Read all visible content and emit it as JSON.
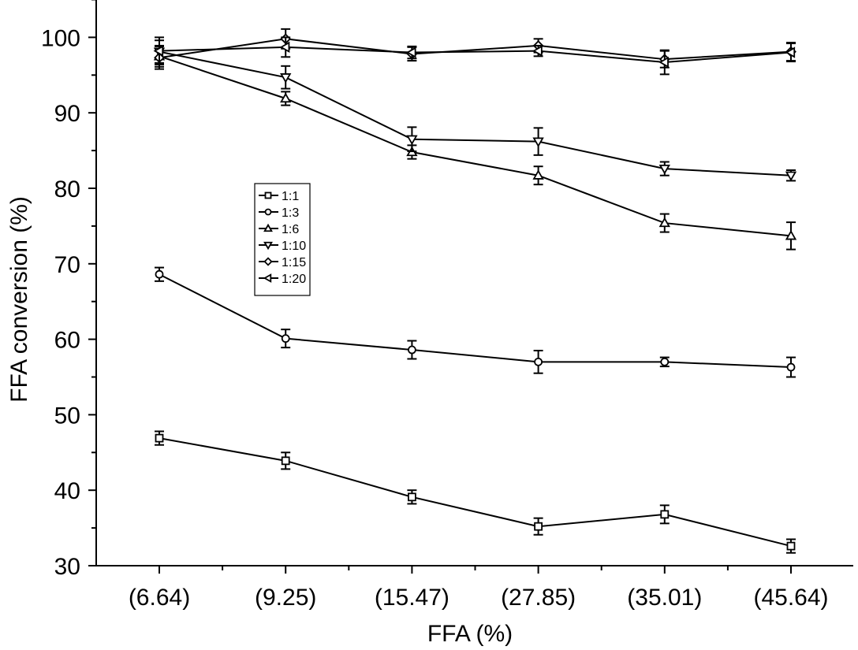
{
  "chart_data": {
    "type": "line",
    "xlabel": "FFA (%)",
    "ylabel": "FFA conversion (%)",
    "categories": [
      "(6.64)",
      "(9.25)",
      "(15.47)",
      "(27.85)",
      "(35.01)",
      "(45.64)"
    ],
    "ylim": [
      30,
      105
    ],
    "yticks": [
      30,
      40,
      50,
      60,
      70,
      80,
      90,
      100
    ],
    "grid": false,
    "legend_position": "center-left",
    "series": [
      {
        "name": "1:1",
        "marker": "square",
        "values": [
          46.9,
          43.9,
          39.1,
          35.2,
          36.8,
          32.6
        ],
        "errors": [
          0.9,
          1.1,
          0.9,
          1.1,
          1.2,
          0.9
        ]
      },
      {
        "name": "1:3",
        "marker": "circle",
        "values": [
          68.6,
          60.1,
          58.6,
          57.0,
          57.0,
          56.3
        ],
        "errors": [
          0.9,
          1.2,
          1.2,
          1.5,
          0.6,
          1.3
        ]
      },
      {
        "name": "1:6",
        "marker": "triangle-up",
        "values": [
          97.5,
          91.9,
          84.8,
          81.7,
          75.4,
          73.7
        ],
        "errors": [
          1.4,
          0.9,
          0.9,
          1.2,
          1.2,
          1.8
        ]
      },
      {
        "name": "1:10",
        "marker": "triangle-down",
        "values": [
          98.1,
          94.7,
          86.5,
          86.2,
          82.6,
          81.7
        ],
        "errors": [
          1.5,
          1.5,
          1.6,
          1.8,
          0.9,
          0.7
        ]
      },
      {
        "name": "1:15",
        "marker": "diamond",
        "values": [
          97.3,
          99.8,
          97.8,
          98.9,
          97.1,
          98.1
        ],
        "errors": [
          1.5,
          1.3,
          0.9,
          0.9,
          1.1,
          1.2
        ]
      },
      {
        "name": "1:20",
        "marker": "triangle-left",
        "values": [
          98.2,
          98.7,
          98.0,
          98.2,
          96.7,
          98.0
        ],
        "errors": [
          1.8,
          1.3,
          0.8,
          0.7,
          1.6,
          1.2
        ]
      }
    ]
  }
}
